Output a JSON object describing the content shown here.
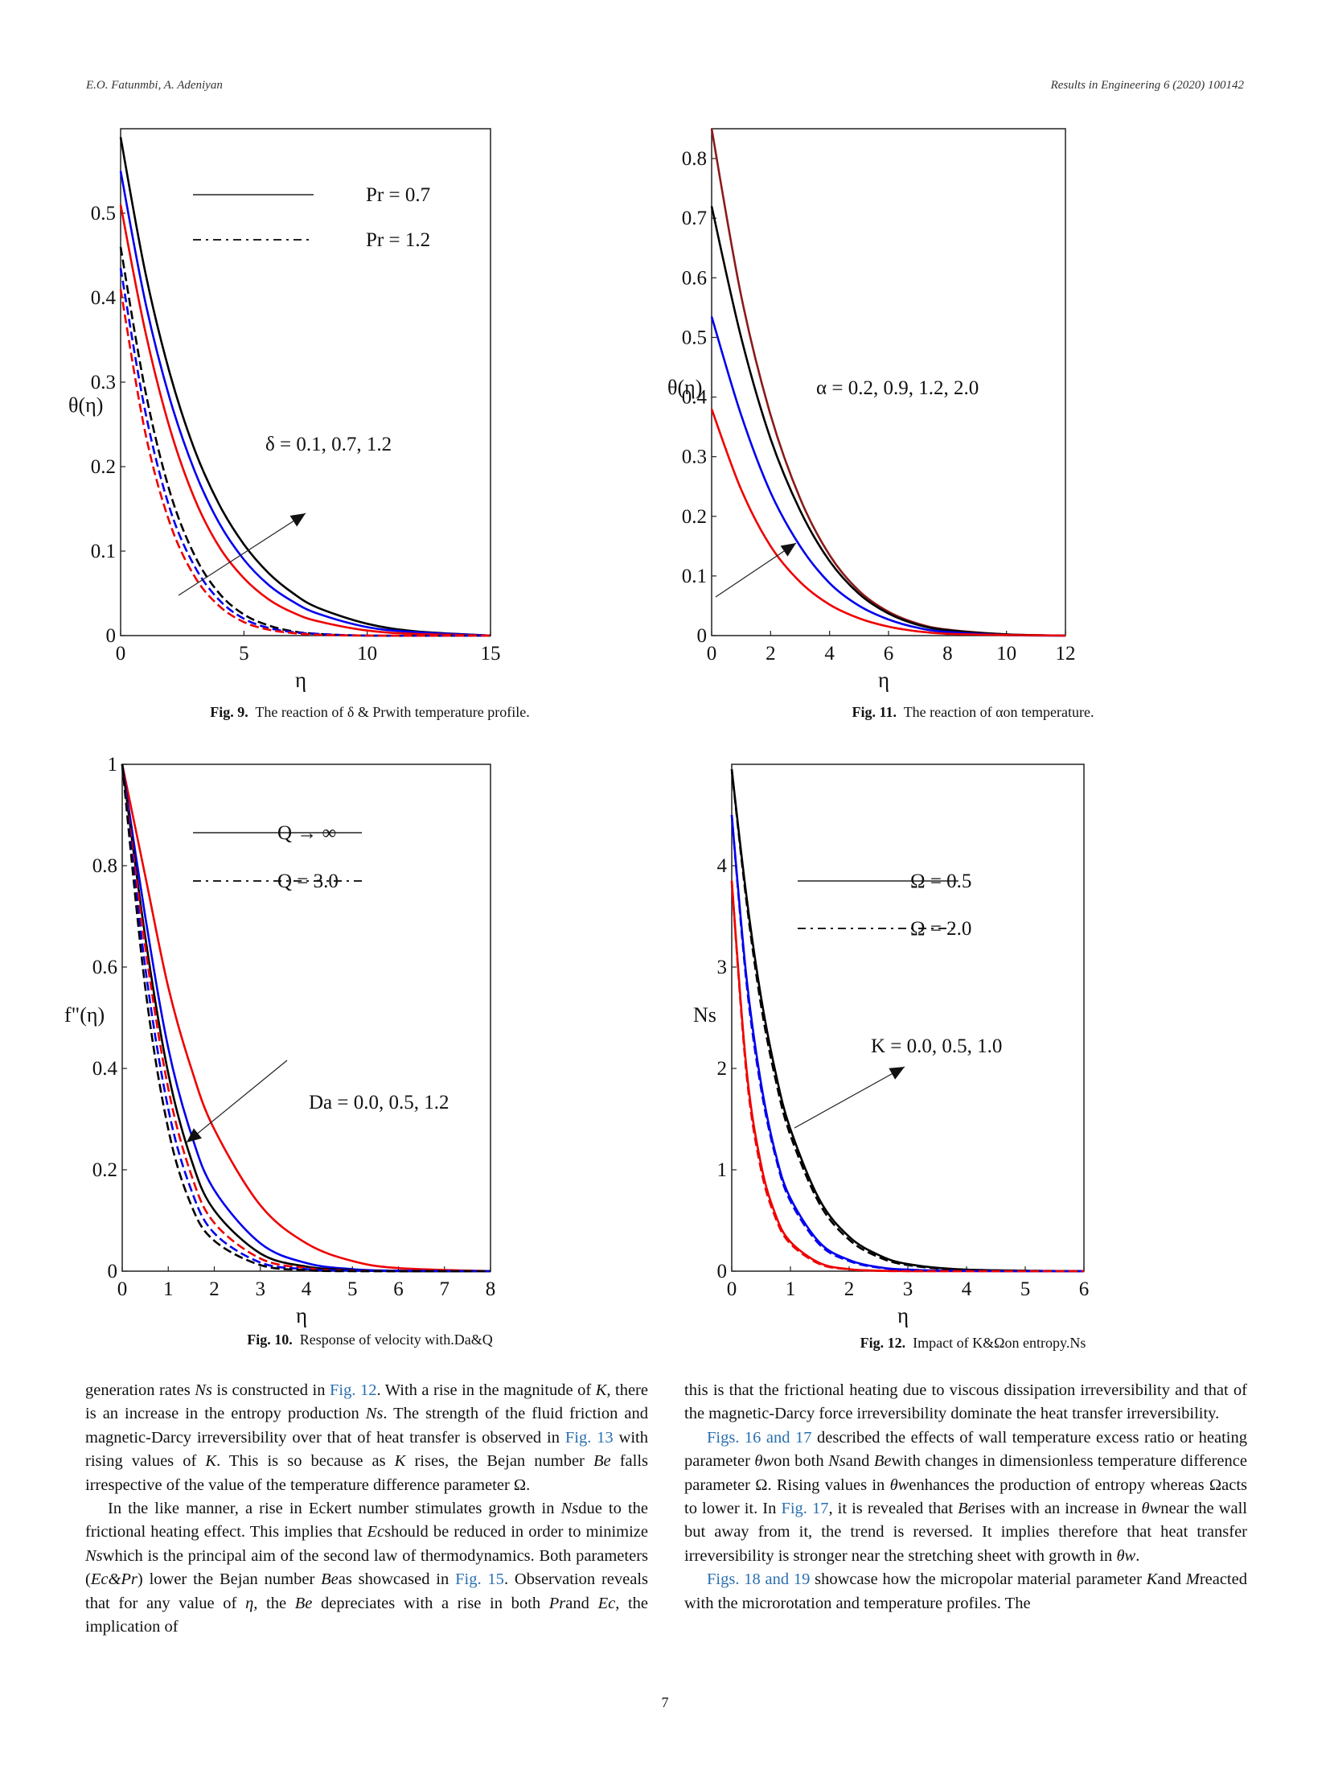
{
  "header": {
    "authors": "E.O. Fatunmbi, A. Adeniyan",
    "journal": "Results in Engineering 6 (2020) 100142"
  },
  "figures": [
    {
      "caption_label": "Fig. 9.",
      "caption_text": "The reaction of δ &  Prwith temperature profile.",
      "ylabel": "θ(η)",
      "xlabel": "η",
      "legend_solid": "Pr = 0.7",
      "legend_dashed": "Pr = 1.2",
      "annotation": "δ = 0.1, 0.7, 1.2",
      "xticks": [
        "0",
        "5",
        "10",
        "15"
      ],
      "yticks": [
        "0",
        "0.1",
        "0.2",
        "0.3",
        "0.4",
        "0.5"
      ]
    },
    {
      "caption_label": "Fig. 11.",
      "caption_text": "The reaction of αon temperature.",
      "ylabel": "θ(η)",
      "xlabel": "η",
      "annotation": "α = 0.2, 0.9, 1.2, 2.0",
      "xticks": [
        "0",
        "2",
        "4",
        "6",
        "8",
        "10",
        "12"
      ],
      "yticks": [
        "0",
        "0.1",
        "0.2",
        "0.3",
        "0.4",
        "0.5",
        "0.6",
        "0.7",
        "0.8"
      ]
    },
    {
      "caption_label": "Fig. 10.",
      "caption_text": "Response of velocity with.Da&Q",
      "ylabel": "f\"(η)",
      "xlabel": "η",
      "legend_solid": "Q → ∞",
      "legend_dashed": "Q = 3.0",
      "annotation": "Da = 0.0, 0.5, 1.2",
      "xticks": [
        "0",
        "1",
        "2",
        "3",
        "4",
        "5",
        "6",
        "7",
        "8"
      ],
      "yticks": [
        "0",
        "0.2",
        "0.4",
        "0.6",
        "0.8",
        "1"
      ]
    },
    {
      "caption_label": "Fig. 12.",
      "caption_text": "Impact of K&Ωon entropy.Ns",
      "ylabel": "Ns",
      "xlabel": "η",
      "legend_solid": "Ω = 0.5",
      "legend_dashed": "Ω = 2.0",
      "annotation": "K = 0.0, 0.5, 1.0",
      "xticks": [
        "0",
        "1",
        "2",
        "3",
        "4",
        "5",
        "6"
      ],
      "yticks": [
        "0",
        "1",
        "2",
        "3",
        "4"
      ]
    }
  ],
  "chart_data": [
    {
      "type": "line",
      "xlabel": "η",
      "ylabel": "θ(η)",
      "xlim": [
        0,
        15
      ],
      "ylim": [
        0,
        0.6
      ],
      "series": [
        {
          "name": "Pr = 0.7",
          "color": "#000000",
          "dashed": false,
          "x": [
            0,
            1,
            2,
            3,
            4,
            5,
            6,
            7,
            8,
            10,
            12,
            15
          ],
          "y": [
            0.59,
            0.43,
            0.31,
            0.22,
            0.155,
            0.108,
            0.074,
            0.05,
            0.033,
            0.014,
            0.005,
            0.0
          ]
        },
        {
          "name": "Pr = 0.7",
          "color": "#0000ee",
          "dashed": false,
          "x": [
            0,
            1,
            2,
            3,
            4,
            5,
            6,
            7,
            8,
            10,
            12,
            15
          ],
          "y": [
            0.55,
            0.395,
            0.28,
            0.195,
            0.133,
            0.09,
            0.06,
            0.04,
            0.026,
            0.01,
            0.004,
            0.0
          ]
        },
        {
          "name": "Pr = 0.7",
          "color": "#ee0000",
          "dashed": false,
          "x": [
            0,
            1,
            2,
            3,
            4,
            5,
            6,
            7,
            8,
            10,
            12,
            15
          ],
          "y": [
            0.51,
            0.36,
            0.245,
            0.162,
            0.105,
            0.068,
            0.043,
            0.027,
            0.017,
            0.006,
            0.002,
            0.0
          ]
        },
        {
          "name": "Pr = 1.2",
          "color": "#000000",
          "dashed": true,
          "x": [
            0,
            1,
            2,
            3,
            4,
            5,
            6,
            7,
            8,
            10,
            15
          ],
          "y": [
            0.46,
            0.29,
            0.17,
            0.095,
            0.05,
            0.025,
            0.012,
            0.005,
            0.002,
            0.0,
            0.0
          ]
        },
        {
          "name": "Pr = 1.2",
          "color": "#0000ee",
          "dashed": true,
          "x": [
            0,
            1,
            2,
            3,
            4,
            5,
            6,
            7,
            8,
            10,
            15
          ],
          "y": [
            0.435,
            0.265,
            0.15,
            0.082,
            0.042,
            0.02,
            0.009,
            0.004,
            0.002,
            0.0,
            0.0
          ]
        },
        {
          "name": "Pr = 1.2",
          "color": "#ee0000",
          "dashed": true,
          "x": [
            0,
            1,
            2,
            3,
            4,
            5,
            6,
            7,
            8,
            10,
            15
          ],
          "y": [
            0.41,
            0.24,
            0.133,
            0.07,
            0.035,
            0.016,
            0.007,
            0.003,
            0.001,
            0.0,
            0.0
          ]
        }
      ]
    },
    {
      "type": "line",
      "xlabel": "η",
      "ylabel": "θ(η)",
      "xlim": [
        0,
        12
      ],
      "ylim": [
        0,
        0.85
      ],
      "series": [
        {
          "name": "",
          "color": "#8b1a1a",
          "dashed": false,
          "x": [
            0,
            1,
            2,
            3,
            4,
            5,
            6,
            7,
            8,
            10,
            12
          ],
          "y": [
            0.85,
            0.57,
            0.37,
            0.23,
            0.135,
            0.075,
            0.04,
            0.02,
            0.01,
            0.002,
            0.0
          ]
        },
        {
          "name": "",
          "color": "#000000",
          "dashed": false,
          "x": [
            0,
            1,
            2,
            3,
            4,
            5,
            6,
            7,
            8,
            10,
            12
          ],
          "y": [
            0.72,
            0.5,
            0.33,
            0.21,
            0.125,
            0.07,
            0.037,
            0.018,
            0.009,
            0.002,
            0.0
          ]
        },
        {
          "name": "",
          "color": "#0000ee",
          "dashed": false,
          "x": [
            0,
            1,
            2,
            3,
            4,
            5,
            6,
            7,
            8,
            10,
            12
          ],
          "y": [
            0.535,
            0.37,
            0.24,
            0.15,
            0.088,
            0.05,
            0.027,
            0.013,
            0.006,
            0.001,
            0.0
          ]
        },
        {
          "name": "",
          "color": "#ee0000",
          "dashed": false,
          "x": [
            0,
            1,
            2,
            3,
            4,
            5,
            6,
            7,
            8,
            10,
            12
          ],
          "y": [
            0.38,
            0.245,
            0.15,
            0.09,
            0.052,
            0.029,
            0.015,
            0.007,
            0.003,
            0.001,
            0.0
          ]
        }
      ]
    },
    {
      "type": "line",
      "xlabel": "η",
      "ylabel": "f\"(η)",
      "xlim": [
        0,
        8
      ],
      "ylim": [
        0,
        1
      ],
      "series": [
        {
          "name": "Q → ∞",
          "color": "#ee0000",
          "dashed": false,
          "x": [
            0,
            0.5,
            1,
            1.5,
            2,
            3,
            4,
            5,
            6,
            8
          ],
          "y": [
            1,
            0.78,
            0.56,
            0.4,
            0.28,
            0.13,
            0.055,
            0.02,
            0.006,
            0.0
          ]
        },
        {
          "name": "Q → ∞",
          "color": "#0000ee",
          "dashed": false,
          "x": [
            0,
            0.5,
            1,
            1.5,
            2,
            3,
            4,
            5,
            6,
            8
          ],
          "y": [
            1,
            0.7,
            0.44,
            0.27,
            0.16,
            0.055,
            0.016,
            0.004,
            0.001,
            0.0
          ]
        },
        {
          "name": "Q → ∞",
          "color": "#000000",
          "dashed": false,
          "x": [
            0,
            0.5,
            1,
            1.5,
            2,
            3,
            4,
            5,
            6,
            8
          ],
          "y": [
            1,
            0.66,
            0.39,
            0.22,
            0.12,
            0.035,
            0.009,
            0.002,
            0.0,
            0.0
          ]
        },
        {
          "name": "Q = 3.0",
          "color": "#ee0000",
          "dashed": true,
          "x": [
            0,
            0.5,
            1,
            1.5,
            2,
            3,
            4,
            5,
            8
          ],
          "y": [
            1,
            0.64,
            0.36,
            0.19,
            0.095,
            0.025,
            0.006,
            0.001,
            0.0
          ]
        },
        {
          "name": "Q = 3.0",
          "color": "#0000ee",
          "dashed": true,
          "x": [
            0,
            0.5,
            1,
            1.5,
            2,
            3,
            4,
            5,
            8
          ],
          "y": [
            1,
            0.6,
            0.32,
            0.16,
            0.075,
            0.017,
            0.004,
            0.001,
            0.0
          ]
        },
        {
          "name": "Q = 3.0",
          "color": "#000000",
          "dashed": true,
          "x": [
            0,
            0.5,
            1,
            1.5,
            2,
            3,
            4,
            5,
            8
          ],
          "y": [
            1,
            0.56,
            0.28,
            0.13,
            0.06,
            0.012,
            0.002,
            0.0,
            0.0
          ]
        }
      ]
    },
    {
      "type": "line",
      "xlabel": "η",
      "ylabel": "Ns",
      "xlim": [
        0,
        6
      ],
      "ylim": [
        0,
        5
      ],
      "series": [
        {
          "name": "Ω = 0.5",
          "color": "#000000",
          "dashed": false,
          "x": [
            0,
            0.25,
            0.5,
            0.75,
            1,
            1.5,
            2,
            2.5,
            3,
            4,
            6
          ],
          "y": [
            4.95,
            3.7,
            2.7,
            1.95,
            1.4,
            0.7,
            0.34,
            0.16,
            0.07,
            0.015,
            0.0
          ]
        },
        {
          "name": "Ω = 0.5",
          "color": "#0000ee",
          "dashed": false,
          "x": [
            0,
            0.25,
            0.5,
            0.75,
            1,
            1.5,
            2,
            2.5,
            3,
            4,
            6
          ],
          "y": [
            4.5,
            2.9,
            1.85,
            1.15,
            0.72,
            0.28,
            0.11,
            0.04,
            0.015,
            0.002,
            0.0
          ]
        },
        {
          "name": "Ω = 0.5",
          "color": "#ee0000",
          "dashed": false,
          "x": [
            0,
            0.25,
            0.5,
            0.75,
            1,
            1.5,
            2,
            2.5,
            3,
            4,
            6
          ],
          "y": [
            3.85,
            2.0,
            1.05,
            0.55,
            0.29,
            0.08,
            0.02,
            0.005,
            0.001,
            0.0,
            0.0
          ]
        },
        {
          "name": "Ω = 2.0",
          "color": "#000000",
          "dashed": true,
          "x": [
            0,
            0.25,
            0.5,
            0.75,
            1,
            1.5,
            2,
            2.5,
            3,
            4,
            6
          ],
          "y": [
            4.95,
            3.65,
            2.62,
            1.88,
            1.34,
            0.66,
            0.31,
            0.14,
            0.06,
            0.012,
            0.0
          ]
        },
        {
          "name": "Ω = 2.0",
          "color": "#0000ee",
          "dashed": true,
          "x": [
            0,
            0.25,
            0.5,
            0.75,
            1,
            1.5,
            2,
            2.5,
            3,
            4,
            6
          ],
          "y": [
            4.5,
            2.85,
            1.8,
            1.12,
            0.69,
            0.26,
            0.1,
            0.035,
            0.013,
            0.002,
            0.0
          ]
        },
        {
          "name": "Ω = 2.0",
          "color": "#ee0000",
          "dashed": true,
          "x": [
            0,
            0.25,
            0.5,
            0.75,
            1,
            1.5,
            2,
            2.5,
            3,
            4,
            6
          ],
          "y": [
            3.85,
            1.95,
            1.0,
            0.52,
            0.27,
            0.07,
            0.018,
            0.004,
            0.001,
            0.0,
            0.0
          ]
        }
      ]
    }
  ],
  "body_left": [
    {
      "parts": [
        {
          "t": "generation rates "
        },
        {
          "t": "Ns",
          "i": true
        },
        {
          "t": " is constructed in "
        },
        {
          "t": "Fig. 12",
          "l": true
        },
        {
          "t": ". With a rise in the magnitude of "
        },
        {
          "t": "K",
          "i": true
        },
        {
          "t": ", there is an increase in the entropy production "
        },
        {
          "t": "Ns",
          "i": true
        },
        {
          "t": ". The strength of the fluid friction and magnetic-Darcy irreversibility over that of heat transfer is observed in "
        },
        {
          "t": "Fig. 13",
          "l": true
        },
        {
          "t": " with rising values of "
        },
        {
          "t": "K",
          "i": true
        },
        {
          "t": ". This is so because as "
        },
        {
          "t": "K",
          "i": true
        },
        {
          "t": " rises, the Bejan number "
        },
        {
          "t": "Be",
          "i": true
        },
        {
          "t": " falls irrespective of the value of the temperature difference parameter Ω."
        }
      ]
    },
    {
      "indent": true,
      "parts": [
        {
          "t": "In the like manner, a rise in Eckert number stimulates growth in "
        },
        {
          "t": "Ns",
          "i": true
        },
        {
          "t": "due to the frictional heating effect. This implies that "
        },
        {
          "t": "Ec",
          "i": true
        },
        {
          "t": "should be reduced in order to minimize "
        },
        {
          "t": "Ns",
          "i": true
        },
        {
          "t": "which is the principal aim of the second law of thermodynamics. Both parameters ("
        },
        {
          "t": "Ec&Pr",
          "i": true
        },
        {
          "t": ") lower the Bejan number "
        },
        {
          "t": "Be",
          "i": true
        },
        {
          "t": "as showcased in "
        },
        {
          "t": "Fig. 15",
          "l": true
        },
        {
          "t": ". Observation reveals that for any value of "
        },
        {
          "t": "η",
          "i": true
        },
        {
          "t": ", the "
        },
        {
          "t": "Be",
          "i": true
        },
        {
          "t": " depreciates with a rise in both "
        },
        {
          "t": "Pr",
          "i": true
        },
        {
          "t": "and "
        },
        {
          "t": "Ec",
          "i": true
        },
        {
          "t": ", the implication of"
        }
      ]
    }
  ],
  "body_right": [
    {
      "parts": [
        {
          "t": "this is that the frictional heating due to viscous dissipation irreversibility and that of the magnetic-Darcy force irreversibility dominate the heat transfer irreversibility."
        }
      ]
    },
    {
      "indent": true,
      "parts": [
        {
          "t": "Figs. 16 and 17",
          "l": true
        },
        {
          "t": " described the effects of wall temperature excess ratio or heating parameter "
        },
        {
          "t": "θw",
          "i": true
        },
        {
          "t": "on both "
        },
        {
          "t": "Ns",
          "i": true
        },
        {
          "t": "and "
        },
        {
          "t": "Be",
          "i": true
        },
        {
          "t": "with changes in dimensionless temperature difference parameter Ω. Rising values in "
        },
        {
          "t": "θw",
          "i": true
        },
        {
          "t": "enhances the production of entropy whereas Ωacts to lower it. In "
        },
        {
          "t": "Fig. 17",
          "l": true
        },
        {
          "t": ", it is revealed that "
        },
        {
          "t": "Be",
          "i": true
        },
        {
          "t": "rises with an increase in "
        },
        {
          "t": "θw",
          "i": true
        },
        {
          "t": "near the wall but away from it, the trend is reversed. It implies therefore that heat transfer irreversibility is stronger near the stretching sheet with growth in "
        },
        {
          "t": "θw",
          "i": true
        },
        {
          "t": "."
        }
      ]
    },
    {
      "indent": true,
      "parts": [
        {
          "t": "Figs. 18 and 19",
          "l": true
        },
        {
          "t": " showcase how the micropolar material parameter "
        },
        {
          "t": "K",
          "i": true
        },
        {
          "t": "and "
        },
        {
          "t": "M",
          "i": true
        },
        {
          "t": "reacted with the microrotation and temperature profiles. The"
        }
      ]
    }
  ],
  "page_number": "7"
}
